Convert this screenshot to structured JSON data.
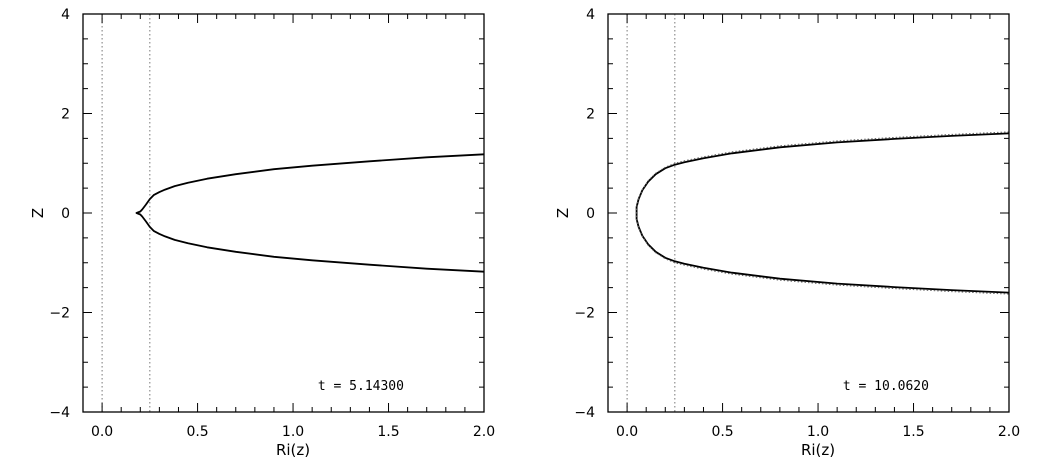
{
  "chart_data": [
    {
      "type": "line",
      "xlabel": "Ri(z)",
      "ylabel": "Z",
      "xlim": [
        -0.1,
        2.0
      ],
      "ylim": [
        -4,
        4
      ],
      "x_ticks": [
        "0.0",
        "0.5",
        "1.0",
        "1.5",
        "2.0"
      ],
      "y_ticks": [
        "−4",
        "−2",
        "0",
        "2",
        "4"
      ],
      "reference_lines_x": [
        0.0,
        0.25
      ],
      "annotation": "t = 5.14300",
      "series": [
        {
          "style": "solid",
          "x": [
            2.0,
            1.7,
            1.4,
            1.1,
            0.9,
            0.7,
            0.55,
            0.45,
            0.38,
            0.33,
            0.3,
            0.27,
            0.25,
            0.23,
            0.21,
            0.2,
            0.18,
            0.2,
            0.21,
            0.23,
            0.25,
            0.27,
            0.3,
            0.33,
            0.38,
            0.45,
            0.55,
            0.7,
            0.9,
            1.1,
            1.4,
            1.7,
            2.0
          ],
          "y": [
            1.18,
            1.12,
            1.04,
            0.95,
            0.88,
            0.78,
            0.69,
            0.61,
            0.54,
            0.47,
            0.42,
            0.36,
            0.28,
            0.17,
            0.07,
            0.03,
            0.0,
            -0.03,
            -0.07,
            -0.17,
            -0.28,
            -0.36,
            -0.42,
            -0.47,
            -0.54,
            -0.61,
            -0.69,
            -0.78,
            -0.88,
            -0.95,
            -1.04,
            -1.12,
            -1.18
          ]
        }
      ]
    },
    {
      "type": "line",
      "xlabel": "Ri(z)",
      "ylabel": "Z",
      "xlim": [
        -0.1,
        2.0
      ],
      "ylim": [
        -4,
        4
      ],
      "x_ticks": [
        "0.0",
        "0.5",
        "1.0",
        "1.5",
        "2.0"
      ],
      "y_ticks": [
        "−4",
        "−2",
        "0",
        "2",
        "4"
      ],
      "reference_lines_x": [
        0.0,
        0.25
      ],
      "annotation": "t = 10.0620",
      "series": [
        {
          "style": "solid",
          "x": [
            2.0,
            1.7,
            1.4,
            1.1,
            0.8,
            0.55,
            0.4,
            0.3,
            0.25,
            0.2,
            0.15,
            0.11,
            0.08,
            0.06,
            0.05,
            0.05,
            0.05,
            0.06,
            0.08,
            0.11,
            0.15,
            0.2,
            0.25,
            0.3,
            0.4,
            0.55,
            0.8,
            1.1,
            1.4,
            1.7,
            2.0
          ],
          "y": [
            1.6,
            1.55,
            1.49,
            1.42,
            1.32,
            1.2,
            1.1,
            1.02,
            0.97,
            0.9,
            0.78,
            0.63,
            0.46,
            0.28,
            0.12,
            0.0,
            -0.12,
            -0.28,
            -0.46,
            -0.63,
            -0.78,
            -0.9,
            -0.97,
            -1.02,
            -1.1,
            -1.2,
            -1.32,
            -1.42,
            -1.49,
            -1.55,
            -1.6
          ]
        },
        {
          "style": "dotted",
          "x": [
            2.0,
            1.7,
            1.4,
            1.1,
            0.8,
            0.55,
            0.4,
            0.3,
            0.25,
            0.2,
            0.15,
            0.11,
            0.08,
            0.06,
            0.05,
            0.05,
            0.05,
            0.06,
            0.08,
            0.11,
            0.15,
            0.2,
            0.25,
            0.3,
            0.4,
            0.55,
            0.8,
            1.1,
            1.4,
            1.7,
            2.0
          ],
          "y": [
            1.63,
            1.58,
            1.52,
            1.45,
            1.35,
            1.23,
            1.13,
            1.05,
            1.0,
            0.92,
            0.8,
            0.65,
            0.47,
            0.29,
            0.12,
            0.0,
            -0.12,
            -0.29,
            -0.47,
            -0.65,
            -0.8,
            -0.92,
            -1.0,
            -1.05,
            -1.13,
            -1.23,
            -1.35,
            -1.45,
            -1.52,
            -1.58,
            -1.63
          ]
        }
      ]
    }
  ]
}
